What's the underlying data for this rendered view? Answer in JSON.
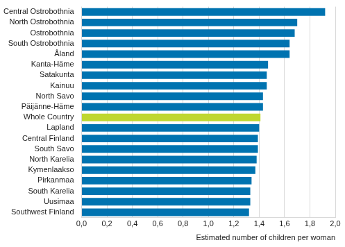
{
  "chart_data": {
    "type": "bar",
    "orientation": "horizontal",
    "x_label": "Estimated number of children per woman",
    "categories": [
      "Central Ostrobothnia",
      "North Ostrobothnia",
      "Ostrobothnia",
      "South Ostrobothnia",
      "Åland",
      "Kanta-Häme",
      "Satakunta",
      "Kainuu",
      "North Savo",
      "Päijänne-Häme",
      "Whole Country",
      "Lapland",
      "Central Finland",
      "South Savo",
      "North Karelia",
      "Kymenlaakso",
      "Pirkanmaa",
      "South Karelia",
      "Uusimaa",
      "Southwest Finland"
    ],
    "values": [
      1.92,
      1.7,
      1.68,
      1.64,
      1.64,
      1.47,
      1.46,
      1.46,
      1.43,
      1.43,
      1.41,
      1.4,
      1.39,
      1.39,
      1.38,
      1.37,
      1.34,
      1.33,
      1.33,
      1.32
    ],
    "colors": [
      "#0073b0",
      "#0073b0",
      "#0073b0",
      "#0073b0",
      "#0073b0",
      "#0073b0",
      "#0073b0",
      "#0073b0",
      "#0073b0",
      "#0073b0",
      "#bfd730",
      "#0073b0",
      "#0073b0",
      "#0073b0",
      "#0073b0",
      "#0073b0",
      "#0073b0",
      "#0073b0",
      "#0073b0",
      "#0073b0"
    ],
    "xlim": [
      0,
      2
    ],
    "xticks": [
      {
        "value": 0,
        "label": "0,0"
      },
      {
        "value": 0.2,
        "label": "0,2"
      },
      {
        "value": 0.4,
        "label": "0,4"
      },
      {
        "value": 0.6,
        "label": "0,6"
      },
      {
        "value": 0.8,
        "label": "0,8"
      },
      {
        "value": 1,
        "label": "1,0"
      },
      {
        "value": 1.2,
        "label": "1,2"
      },
      {
        "value": 1.4,
        "label": "1,4"
      },
      {
        "value": 1.6,
        "label": "1,6"
      },
      {
        "value": 1.8,
        "label": "1,8"
      },
      {
        "value": 2,
        "label": "2,0"
      }
    ],
    "grid": true
  }
}
